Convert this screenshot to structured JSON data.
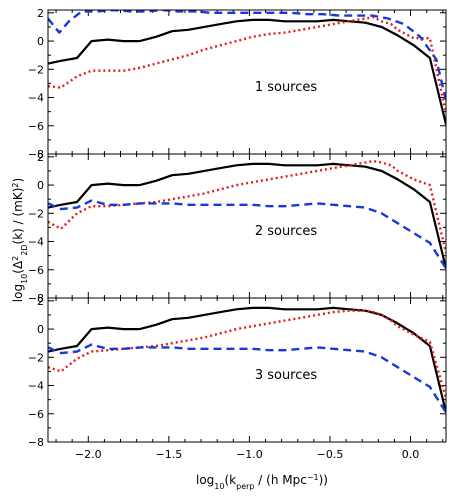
{
  "chart_data": {
    "type": "line",
    "xlabel": "log₁₀(k_perp / (h Mpc⁻¹))",
    "ylabel": "log₁₀(Δ²_2D(k) / (mK)²)",
    "xlabel_parts": {
      "pre": "log",
      "sub1": "10",
      "mid1": "(k",
      "sub2": "perp",
      "post1": " / (h Mpc",
      "sup": "−1",
      "post2": "))"
    },
    "ylabel_parts": {
      "pre": "log",
      "sub1": "10",
      "mid1": "(Δ",
      "sup1": "2",
      "sub2": "2D",
      "mid2": "(k) / (mK)",
      "sup2": "2",
      "post": ")"
    },
    "xlim": [
      -2.25,
      0.22
    ],
    "ylim": [
      -8,
      2.2
    ],
    "x_ticks": [
      -2.0,
      -1.5,
      -1.0,
      -0.5,
      0.0
    ],
    "x_tick_labels": [
      "−2.0",
      "−1.5",
      "−1.0",
      "−0.5",
      "0.0"
    ],
    "y_ticks": [
      -8,
      -6,
      -4,
      -2,
      0,
      2
    ],
    "y_tick_labels": [
      "−8",
      "−6",
      "−4",
      "−2",
      "0",
      "2"
    ],
    "grid": false,
    "series_styles": [
      {
        "color": "#000000",
        "dash": "solid"
      },
      {
        "color": "#e8191b",
        "dash": "dotted"
      },
      {
        "color": "#1838d8",
        "dash": "dashed"
      }
    ],
    "panels": [
      {
        "annotation": "1 sources",
        "series": [
          {
            "x": [
              -2.25,
              -2.17,
              -2.07,
              -1.98,
              -1.88,
              -1.78,
              -1.68,
              -1.58,
              -1.48,
              -1.38,
              -1.28,
              -1.18,
              -1.08,
              -0.98,
              -0.88,
              -0.78,
              -0.68,
              -0.58,
              -0.48,
              -0.38,
              -0.28,
              -0.18,
              -0.08,
              0.02,
              0.12,
              0.22
            ],
            "y": [
              -1.6,
              -1.4,
              -1.2,
              0.0,
              0.1,
              0.0,
              0.0,
              0.3,
              0.7,
              0.8,
              1.0,
              1.2,
              1.4,
              1.5,
              1.5,
              1.4,
              1.4,
              1.4,
              1.5,
              1.4,
              1.3,
              1.0,
              0.4,
              -0.3,
              -1.2,
              -5.9
            ]
          },
          {
            "x": [
              -2.25,
              -2.17,
              -2.07,
              -1.98,
              -1.88,
              -1.78,
              -1.68,
              -1.58,
              -1.48,
              -1.38,
              -1.28,
              -1.18,
              -1.08,
              -0.98,
              -0.88,
              -0.78,
              -0.68,
              -0.58,
              -0.48,
              -0.38,
              -0.28,
              -0.23,
              -0.18,
              -0.12,
              -0.08,
              0.02,
              0.12,
              0.22
            ],
            "y": [
              -3.2,
              -3.3,
              -2.5,
              -2.1,
              -2.1,
              -2.1,
              -1.9,
              -1.6,
              -1.3,
              -1.0,
              -0.6,
              -0.3,
              0.0,
              0.3,
              0.5,
              0.6,
              0.8,
              1.0,
              1.2,
              1.4,
              1.6,
              1.7,
              1.4,
              1.2,
              0.8,
              0.2,
              0.2,
              -5.1
            ]
          },
          {
            "x": [
              -2.25,
              -2.18,
              -2.12,
              -2.04,
              -1.94,
              -1.84,
              -1.74,
              -1.64,
              -1.54,
              -1.44,
              -1.34,
              -1.24,
              -1.14,
              -1.04,
              -0.94,
              -0.84,
              -0.74,
              -0.64,
              -0.54,
              -0.44,
              -0.34,
              -0.24,
              -0.14,
              -0.04,
              0.06,
              0.16,
              0.22
            ],
            "y": [
              1.6,
              0.6,
              1.4,
              2.1,
              2.1,
              2.2,
              2.1,
              2.1,
              2.2,
              2.1,
              2.1,
              2.0,
              2.0,
              2.0,
              2.0,
              2.0,
              2.0,
              1.9,
              1.9,
              1.8,
              1.8,
              1.8,
              1.6,
              1.2,
              0.3,
              -1.3,
              -4.2
            ]
          }
        ]
      },
      {
        "annotation": "2 sources",
        "series": [
          {
            "x": [
              -2.25,
              -2.17,
              -2.07,
              -1.98,
              -1.88,
              -1.78,
              -1.68,
              -1.58,
              -1.48,
              -1.38,
              -1.28,
              -1.18,
              -1.08,
              -0.98,
              -0.88,
              -0.78,
              -0.68,
              -0.58,
              -0.48,
              -0.38,
              -0.28,
              -0.18,
              -0.08,
              0.02,
              0.12,
              0.22
            ],
            "y": [
              -1.6,
              -1.4,
              -1.2,
              0.0,
              0.1,
              0.0,
              0.0,
              0.3,
              0.7,
              0.8,
              1.0,
              1.2,
              1.4,
              1.5,
              1.5,
              1.4,
              1.4,
              1.4,
              1.5,
              1.4,
              1.3,
              1.0,
              0.4,
              -0.3,
              -1.2,
              -5.9
            ]
          },
          {
            "x": [
              -2.25,
              -2.17,
              -2.07,
              -1.98,
              -1.88,
              -1.78,
              -1.68,
              -1.58,
              -1.48,
              -1.38,
              -1.28,
              -1.18,
              -1.08,
              -0.98,
              -0.88,
              -0.78,
              -0.68,
              -0.58,
              -0.48,
              -0.38,
              -0.28,
              -0.23,
              -0.18,
              -0.12,
              -0.08,
              0.02,
              0.12,
              0.22
            ],
            "y": [
              -2.6,
              -3.1,
              -2.0,
              -1.5,
              -1.5,
              -1.4,
              -1.3,
              -1.2,
              -1.0,
              -0.8,
              -0.6,
              -0.3,
              0.0,
              0.2,
              0.4,
              0.6,
              0.8,
              1.0,
              1.2,
              1.4,
              1.6,
              1.7,
              1.6,
              1.4,
              1.0,
              0.4,
              0.0,
              -4.8
            ]
          },
          {
            "x": [
              -2.25,
              -2.17,
              -2.07,
              -1.98,
              -1.88,
              -1.78,
              -1.68,
              -1.58,
              -1.48,
              -1.38,
              -1.28,
              -1.18,
              -1.08,
              -0.98,
              -0.88,
              -0.78,
              -0.68,
              -0.58,
              -0.48,
              -0.38,
              -0.28,
              -0.18,
              -0.08,
              0.02,
              0.12,
              0.22
            ],
            "y": [
              -1.3,
              -1.7,
              -1.6,
              -1.1,
              -1.4,
              -1.4,
              -1.3,
              -1.3,
              -1.3,
              -1.4,
              -1.4,
              -1.4,
              -1.4,
              -1.4,
              -1.5,
              -1.5,
              -1.4,
              -1.3,
              -1.4,
              -1.5,
              -1.6,
              -2.0,
              -2.7,
              -3.4,
              -4.1,
              -5.9
            ]
          }
        ]
      },
      {
        "annotation": "3 sources",
        "series": [
          {
            "x": [
              -2.25,
              -2.17,
              -2.07,
              -1.98,
              -1.88,
              -1.78,
              -1.68,
              -1.58,
              -1.48,
              -1.38,
              -1.28,
              -1.18,
              -1.08,
              -0.98,
              -0.88,
              -0.78,
              -0.68,
              -0.58,
              -0.48,
              -0.38,
              -0.28,
              -0.18,
              -0.08,
              0.02,
              0.12,
              0.22
            ],
            "y": [
              -1.6,
              -1.4,
              -1.2,
              0.0,
              0.1,
              0.0,
              0.0,
              0.3,
              0.7,
              0.8,
              1.0,
              1.2,
              1.4,
              1.5,
              1.5,
              1.4,
              1.4,
              1.4,
              1.5,
              1.4,
              1.3,
              1.0,
              0.4,
              -0.3,
              -1.2,
              -5.9
            ]
          },
          {
            "x": [
              -2.25,
              -2.17,
              -2.07,
              -1.98,
              -1.88,
              -1.78,
              -1.68,
              -1.58,
              -1.48,
              -1.38,
              -1.28,
              -1.18,
              -1.08,
              -0.98,
              -0.88,
              -0.78,
              -0.68,
              -0.58,
              -0.48,
              -0.38,
              -0.28,
              -0.23,
              -0.18,
              -0.12,
              -0.08,
              0.02,
              0.12,
              0.22
            ],
            "y": [
              -2.7,
              -3.0,
              -2.1,
              -1.6,
              -1.5,
              -1.4,
              -1.3,
              -1.2,
              -1.0,
              -0.8,
              -0.6,
              -0.3,
              0.0,
              0.2,
              0.4,
              0.6,
              0.8,
              1.0,
              1.2,
              1.3,
              1.3,
              1.2,
              1.0,
              0.6,
              0.2,
              -0.4,
              -0.9,
              -4.9
            ]
          },
          {
            "x": [
              -2.25,
              -2.17,
              -2.07,
              -1.98,
              -1.88,
              -1.78,
              -1.68,
              -1.58,
              -1.48,
              -1.38,
              -1.28,
              -1.18,
              -1.08,
              -0.98,
              -0.88,
              -0.78,
              -0.68,
              -0.58,
              -0.48,
              -0.38,
              -0.28,
              -0.18,
              -0.08,
              0.02,
              0.12,
              0.22
            ],
            "y": [
              -1.3,
              -1.7,
              -1.6,
              -1.1,
              -1.4,
              -1.4,
              -1.3,
              -1.3,
              -1.3,
              -1.4,
              -1.4,
              -1.4,
              -1.4,
              -1.4,
              -1.5,
              -1.5,
              -1.4,
              -1.3,
              -1.4,
              -1.5,
              -1.6,
              -2.0,
              -2.7,
              -3.4,
              -4.1,
              -5.9
            ]
          }
        ]
      }
    ]
  }
}
